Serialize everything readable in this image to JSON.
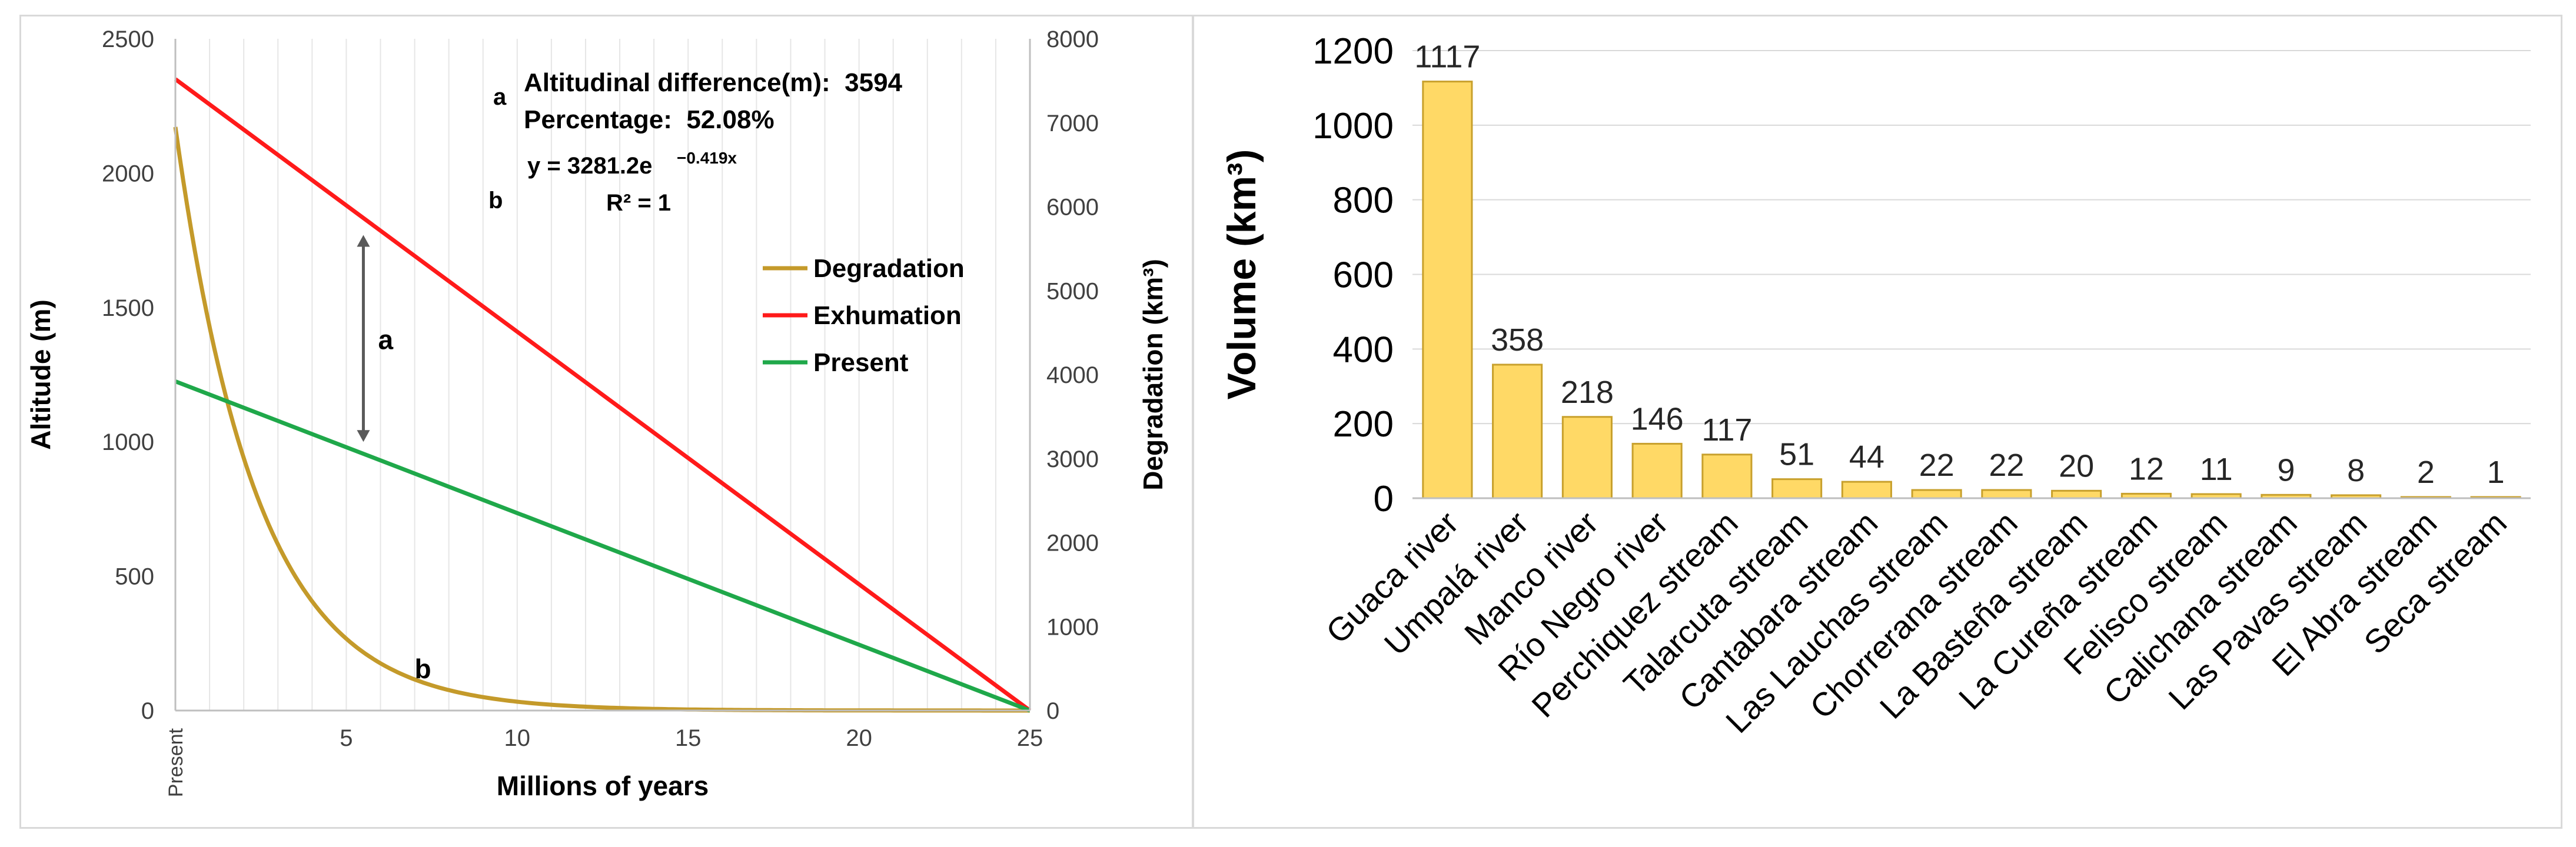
{
  "colors": {
    "degradation": "#c49a2a",
    "exhumation": "#ff1a1a",
    "present": "#1fa84a",
    "bar_fill": "#ffd966",
    "bar_stroke": "#c8a02c",
    "grid": "#d9d9d9",
    "axis_text": "#404040",
    "arrow": "#595959"
  },
  "chart_data": [
    {
      "type": "line",
      "title": "",
      "xlabel": "Millions of years",
      "ylabel": "Altitude (m)",
      "y2label": "Degradation (km³)",
      "xlim": [
        0,
        25
      ],
      "ylim": [
        0,
        2500
      ],
      "y2lim": [
        0,
        8000
      ],
      "x_ticks": [
        5,
        10,
        15,
        20,
        25
      ],
      "x_zero_label": "Present",
      "y_ticks": [
        0,
        500,
        1000,
        1500,
        2000,
        2500
      ],
      "y2_ticks": [
        0,
        1000,
        2000,
        3000,
        4000,
        5000,
        6000,
        7000,
        8000
      ],
      "series": [
        {
          "name": "Degradation",
          "axis": "right",
          "kind": "exponential",
          "a": 3281.2,
          "b": -0.419,
          "start": [
            0,
            6950
          ],
          "end": [
            25,
            0
          ]
        },
        {
          "name": "Exhumation",
          "axis": "left",
          "kind": "linear",
          "points": [
            [
              0,
              2350
            ],
            [
              25,
              0
            ]
          ]
        },
        {
          "name": "Present",
          "axis": "left",
          "kind": "linear",
          "points": [
            [
              0,
              1225
            ],
            [
              25,
              0
            ]
          ]
        }
      ],
      "legend": [
        "Degradation",
        "Exhumation",
        "Present"
      ],
      "legend_position": "right",
      "annotations": {
        "a_marker": "a",
        "a_line1": "Altitudinal difference(m):  3594",
        "a_line2": "Percentage:  52.08%",
        "b_marker": "b",
        "eq_lhs": "y = 3281.2e",
        "eq_exp": "−0.419x",
        "r2": "R² = 1",
        "arrow_label": "a",
        "arrow_x": 5.5,
        "arrow_from": 1000,
        "arrow_to": 1770,
        "curve_label": "b",
        "curve_label_at": [
          7,
          120
        ]
      }
    },
    {
      "type": "bar",
      "title": "",
      "xlabel": "",
      "ylabel": "Volume (km³)",
      "ylim": [
        0,
        1200
      ],
      "y_ticks": [
        0,
        200,
        400,
        600,
        800,
        1000,
        1200
      ],
      "categories": [
        "Guaca river",
        "Umpalá river",
        "Manco river",
        "Río Negro river",
        "Perchiquez stream",
        "Talarcuta stream",
        "Cantabara stream",
        "Las Lauchas stream",
        "Chorrerana stream",
        "La Basteña stream",
        "La Cureña stream",
        "Felisco stream",
        "Calichana stream",
        "Las Pavas stream",
        "El Abra stream",
        "Seca stream"
      ],
      "values": [
        1117,
        358,
        218,
        146,
        117,
        51,
        44,
        22,
        22,
        20,
        12,
        11,
        9,
        8,
        2,
        1
      ],
      "grid": true
    }
  ]
}
